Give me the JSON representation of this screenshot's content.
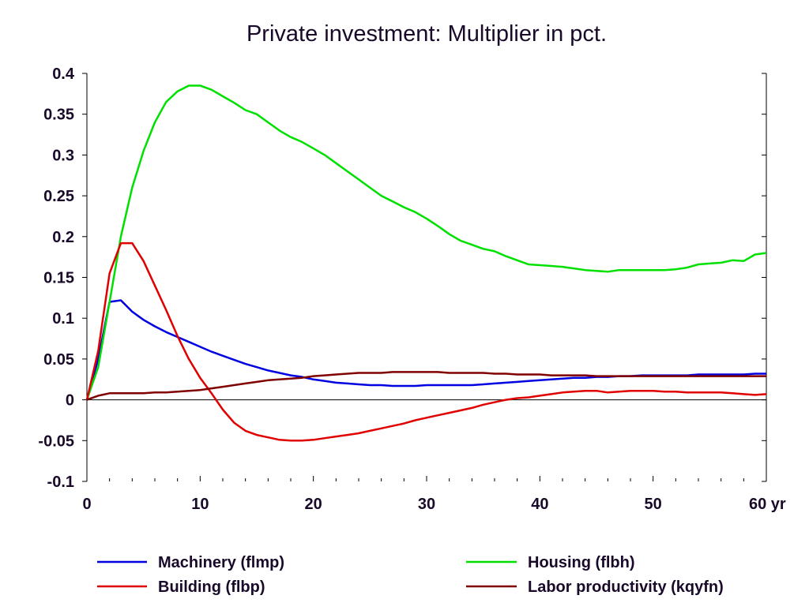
{
  "chart_data": {
    "type": "line",
    "title": "Private investment: Multiplier in pct.",
    "xlabel": "",
    "ylabel": "",
    "xlim": [
      0,
      60
    ],
    "ylim": [
      -0.1,
      0.4
    ],
    "x_ticks": [
      0,
      10,
      20,
      30,
      40,
      50,
      60
    ],
    "x_tick_labels": [
      "0",
      "10",
      "20",
      "30",
      "40",
      "50",
      "60 yr"
    ],
    "y_ticks": [
      -0.1,
      -0.05,
      0,
      0.05,
      0.1,
      0.15,
      0.2,
      0.25,
      0.3,
      0.35,
      0.4
    ],
    "y_tick_labels": [
      "-0.1",
      "-0.05",
      "0",
      "0.05",
      "0.1",
      "0.15",
      "0.2",
      "0.25",
      "0.3",
      "0.35",
      "0.4"
    ],
    "grid": false,
    "zero_line": true,
    "legend_position": "bottom",
    "series": [
      {
        "name": "Machinery (flmp)",
        "color": "#0000e0",
        "x": [
          0,
          1,
          2,
          3,
          4,
          5,
          6,
          7,
          8,
          9,
          10,
          11,
          12,
          13,
          14,
          15,
          16,
          17,
          18,
          19,
          20,
          21,
          22,
          23,
          24,
          25,
          26,
          27,
          28,
          29,
          30,
          31,
          32,
          33,
          34,
          35,
          36,
          37,
          38,
          39,
          40,
          41,
          42,
          43,
          44,
          45,
          46,
          47,
          48,
          49,
          50,
          51,
          52,
          53,
          54,
          55,
          56,
          57,
          58,
          59,
          60
        ],
        "values": [
          0,
          0.05,
          0.12,
          0.122,
          0.108,
          0.098,
          0.09,
          0.083,
          0.077,
          0.071,
          0.065,
          0.059,
          0.054,
          0.049,
          0.044,
          0.04,
          0.036,
          0.033,
          0.03,
          0.028,
          0.025,
          0.023,
          0.021,
          0.02,
          0.019,
          0.018,
          0.018,
          0.017,
          0.017,
          0.017,
          0.018,
          0.018,
          0.018,
          0.018,
          0.018,
          0.019,
          0.02,
          0.021,
          0.022,
          0.023,
          0.024,
          0.025,
          0.026,
          0.027,
          0.027,
          0.028,
          0.028,
          0.029,
          0.029,
          0.03,
          0.03,
          0.03,
          0.03,
          0.03,
          0.031,
          0.031,
          0.031,
          0.031,
          0.031,
          0.032,
          0.032
        ]
      },
      {
        "name": "Housing (flbh)",
        "color": "#00e000",
        "x": [
          0,
          1,
          2,
          3,
          4,
          5,
          6,
          7,
          8,
          9,
          10,
          11,
          12,
          13,
          14,
          15,
          16,
          17,
          18,
          19,
          20,
          21,
          22,
          23,
          24,
          25,
          26,
          27,
          28,
          29,
          30,
          31,
          32,
          33,
          34,
          35,
          36,
          37,
          38,
          39,
          40,
          41,
          42,
          43,
          44,
          45,
          46,
          47,
          48,
          49,
          50,
          51,
          52,
          53,
          54,
          55,
          56,
          57,
          58,
          59,
          60
        ],
        "values": [
          0,
          0.04,
          0.12,
          0.2,
          0.26,
          0.305,
          0.34,
          0.365,
          0.378,
          0.385,
          0.385,
          0.38,
          0.372,
          0.364,
          0.355,
          0.35,
          0.34,
          0.33,
          0.322,
          0.316,
          0.308,
          0.3,
          0.29,
          0.28,
          0.27,
          0.26,
          0.25,
          0.243,
          0.236,
          0.23,
          0.222,
          0.213,
          0.203,
          0.195,
          0.19,
          0.185,
          0.182,
          0.176,
          0.171,
          0.166,
          0.165,
          0.164,
          0.163,
          0.161,
          0.159,
          0.158,
          0.157,
          0.159,
          0.159,
          0.159,
          0.159,
          0.159,
          0.16,
          0.162,
          0.166,
          0.167,
          0.168,
          0.171,
          0.17,
          0.178,
          0.18
        ]
      },
      {
        "name": "Building (flbp)",
        "color": "#e00000",
        "x": [
          0,
          1,
          2,
          3,
          4,
          5,
          6,
          7,
          8,
          9,
          10,
          11,
          12,
          13,
          14,
          15,
          16,
          17,
          18,
          19,
          20,
          21,
          22,
          23,
          24,
          25,
          26,
          27,
          28,
          29,
          30,
          31,
          32,
          33,
          34,
          35,
          36,
          37,
          38,
          39,
          40,
          41,
          42,
          43,
          44,
          45,
          46,
          47,
          48,
          49,
          50,
          51,
          52,
          53,
          54,
          55,
          56,
          57,
          58,
          59,
          60
        ],
        "values": [
          0,
          0.06,
          0.155,
          0.192,
          0.192,
          0.17,
          0.14,
          0.11,
          0.078,
          0.05,
          0.027,
          0.008,
          -0.012,
          -0.028,
          -0.038,
          -0.043,
          -0.046,
          -0.049,
          -0.05,
          -0.05,
          -0.049,
          -0.047,
          -0.045,
          -0.043,
          -0.041,
          -0.038,
          -0.035,
          -0.032,
          -0.029,
          -0.025,
          -0.022,
          -0.019,
          -0.016,
          -0.013,
          -0.01,
          -0.006,
          -0.003,
          0.0,
          0.002,
          0.003,
          0.005,
          0.007,
          0.009,
          0.01,
          0.011,
          0.011,
          0.009,
          0.01,
          0.011,
          0.011,
          0.011,
          0.01,
          0.01,
          0.009,
          0.009,
          0.009,
          0.009,
          0.008,
          0.007,
          0.006,
          0.007
        ]
      },
      {
        "name": "Labor productivity (kqyfn)",
        "color": "#800000",
        "x": [
          0,
          1,
          2,
          3,
          4,
          5,
          6,
          7,
          8,
          9,
          10,
          11,
          12,
          13,
          14,
          15,
          16,
          17,
          18,
          19,
          20,
          21,
          22,
          23,
          24,
          25,
          26,
          27,
          28,
          29,
          30,
          31,
          32,
          33,
          34,
          35,
          36,
          37,
          38,
          39,
          40,
          41,
          42,
          43,
          44,
          45,
          46,
          47,
          48,
          49,
          50,
          51,
          52,
          53,
          54,
          55,
          56,
          57,
          58,
          59,
          60
        ],
        "values": [
          0,
          0.005,
          0.008,
          0.008,
          0.008,
          0.008,
          0.009,
          0.009,
          0.01,
          0.011,
          0.012,
          0.014,
          0.016,
          0.018,
          0.02,
          0.022,
          0.024,
          0.025,
          0.026,
          0.027,
          0.029,
          0.03,
          0.031,
          0.032,
          0.033,
          0.033,
          0.033,
          0.034,
          0.034,
          0.034,
          0.034,
          0.034,
          0.033,
          0.033,
          0.033,
          0.033,
          0.032,
          0.032,
          0.031,
          0.031,
          0.031,
          0.03,
          0.03,
          0.03,
          0.03,
          0.029,
          0.029,
          0.029,
          0.029,
          0.029,
          0.029,
          0.029,
          0.029,
          0.029,
          0.029,
          0.029,
          0.029,
          0.029,
          0.029,
          0.029,
          0.029
        ]
      }
    ]
  },
  "legend": {
    "items": [
      {
        "label": "Machinery (flmp)",
        "color": "#0000e0"
      },
      {
        "label": "Housing (flbh)",
        "color": "#00e000"
      },
      {
        "label": "Building (flbp)",
        "color": "#e00000"
      },
      {
        "label": "Labor productivity (kqyfn)",
        "color": "#800000"
      }
    ]
  }
}
